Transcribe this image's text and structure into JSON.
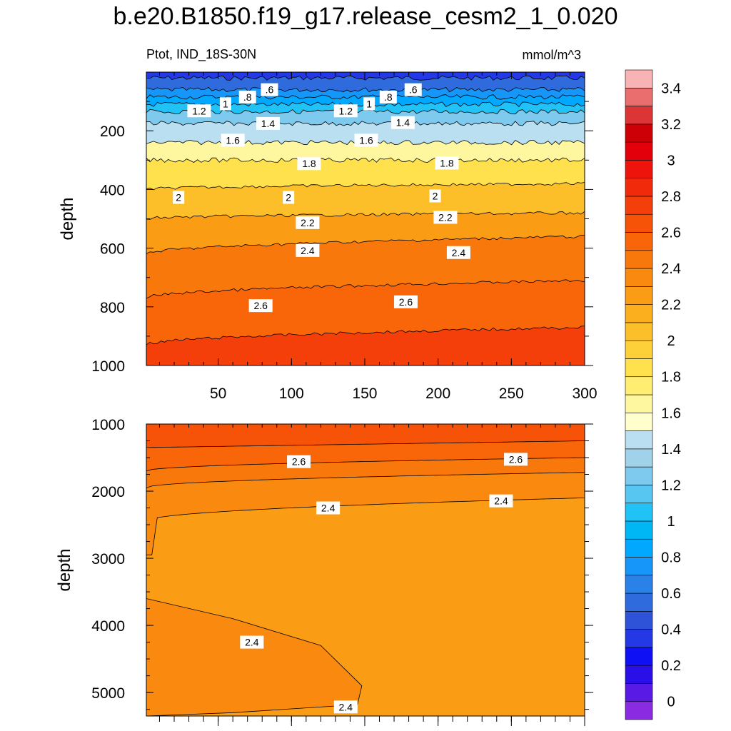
{
  "title": "b.e20.B1850.f19_g17.release_cesm2_1_0.020",
  "subtitle_left": "Ptot, IND_18S-30N",
  "subtitle_right": "mmol/m^3",
  "chart_data": [
    {
      "type": "contour",
      "panel": "upper",
      "variable": "Ptot",
      "region": "IND_18S-30N",
      "units": "mmol/m^3",
      "ylabel": "depth",
      "xlim": [
        1,
        300
      ],
      "ylim": [
        1000,
        0
      ],
      "x_ticks": [
        50,
        100,
        150,
        200,
        250,
        300
      ],
      "y_ticks": [
        200,
        400,
        600,
        800,
        1000
      ],
      "contour_levels": [
        {
          "value": 0.4,
          "depth": 20
        },
        {
          "value": 0.6,
          "depth": 60
        },
        {
          "value": 0.8,
          "depth": 85
        },
        {
          "value": 1.0,
          "depth": 110
        },
        {
          "value": 1.2,
          "depth": 135
        },
        {
          "value": 1.4,
          "depth": 175
        },
        {
          "value": 1.6,
          "depth": 240
        },
        {
          "value": 1.8,
          "depth": 300
        },
        {
          "value": 2.0,
          "depth": 400
        },
        {
          "value": 2.2,
          "depth": 500
        },
        {
          "value": 2.4,
          "depth": 620
        },
        {
          "value": 2.6,
          "depth": 770
        },
        {
          "value": 2.8,
          "depth": 930
        }
      ],
      "contour_labels": [
        {
          "text": ".6",
          "x": 85,
          "y": 60
        },
        {
          "text": ".6",
          "x": 183,
          "y": 60
        },
        {
          "text": ".8",
          "x": 70,
          "y": 85
        },
        {
          "text": ".8",
          "x": 166,
          "y": 85
        },
        {
          "text": "1",
          "x": 55,
          "y": 108
        },
        {
          "text": "1",
          "x": 153,
          "y": 108
        },
        {
          "text": "1.2",
          "x": 37,
          "y": 132
        },
        {
          "text": "1.2",
          "x": 137,
          "y": 132
        },
        {
          "text": "1.4",
          "x": 84,
          "y": 175
        },
        {
          "text": "1.4",
          "x": 176,
          "y": 172
        },
        {
          "text": "1.6",
          "x": 60,
          "y": 232
        },
        {
          "text": "1.6",
          "x": 151,
          "y": 232
        },
        {
          "text": "1.8",
          "x": 112,
          "y": 312
        },
        {
          "text": "1.8",
          "x": 206,
          "y": 310
        },
        {
          "text": "2",
          "x": 23,
          "y": 427
        },
        {
          "text": "2",
          "x": 98,
          "y": 427
        },
        {
          "text": "2",
          "x": 198,
          "y": 422
        },
        {
          "text": "2.2",
          "x": 111,
          "y": 513
        },
        {
          "text": "2.2",
          "x": 205,
          "y": 495
        },
        {
          "text": "2.4",
          "x": 111,
          "y": 608
        },
        {
          "text": "2.4",
          "x": 214,
          "y": 615
        },
        {
          "text": "2.6",
          "x": 79,
          "y": 796
        },
        {
          "text": "2.6",
          "x": 178,
          "y": 783
        }
      ]
    },
    {
      "type": "contour",
      "panel": "lower",
      "ylabel": "depth",
      "xlim": [
        1,
        300
      ],
      "ylim": [
        5350,
        1000
      ],
      "y_ticks": [
        1000,
        2000,
        3000,
        4000,
        5000
      ],
      "contour_labels": [
        {
          "text": "2.6",
          "x": 105,
          "y": 1560
        },
        {
          "text": "2.6",
          "x": 253,
          "y": 1525
        },
        {
          "text": "2.4",
          "x": 125,
          "y": 2250
        },
        {
          "text": "2.4",
          "x": 243,
          "y": 2145
        },
        {
          "text": "2.4",
          "x": 73,
          "y": 4250
        },
        {
          "text": "2.4",
          "x": 137,
          "y": 5215
        }
      ]
    }
  ],
  "colorbar": {
    "labels": [
      "0",
      "0.2",
      "0.4",
      "0.6",
      "0.8",
      "1",
      "1.2",
      "1.4",
      "1.6",
      "1.8",
      "2",
      "2.2",
      "2.4",
      "2.6",
      "2.8",
      "3",
      "3.2",
      "3.4"
    ],
    "colors": [
      "#8A2BE2",
      "#5A1AE6",
      "#2A10E8",
      "#1010F5",
      "#2438E6",
      "#2E53D8",
      "#2F6BDD",
      "#2A82E8",
      "#1696F8",
      "#00A8FF",
      "#00B7F5",
      "#21C2F5",
      "#57C6F1",
      "#7DCAEE",
      "#A0D2EA",
      "#B9DFF0",
      "#FFFECC",
      "#FFF7A0",
      "#FFEE72",
      "#FEE14C",
      "#FDD03A",
      "#FCBF2A",
      "#FBAE1E",
      "#FA9C14",
      "#F98A0F",
      "#F8780B",
      "#F86609",
      "#F75308",
      "#F53F0A",
      "#F22A0C",
      "#EE140C",
      "#E3000A",
      "#CC0006",
      "#DC3535",
      "#EA6E6E",
      "#F8B4B4"
    ]
  }
}
